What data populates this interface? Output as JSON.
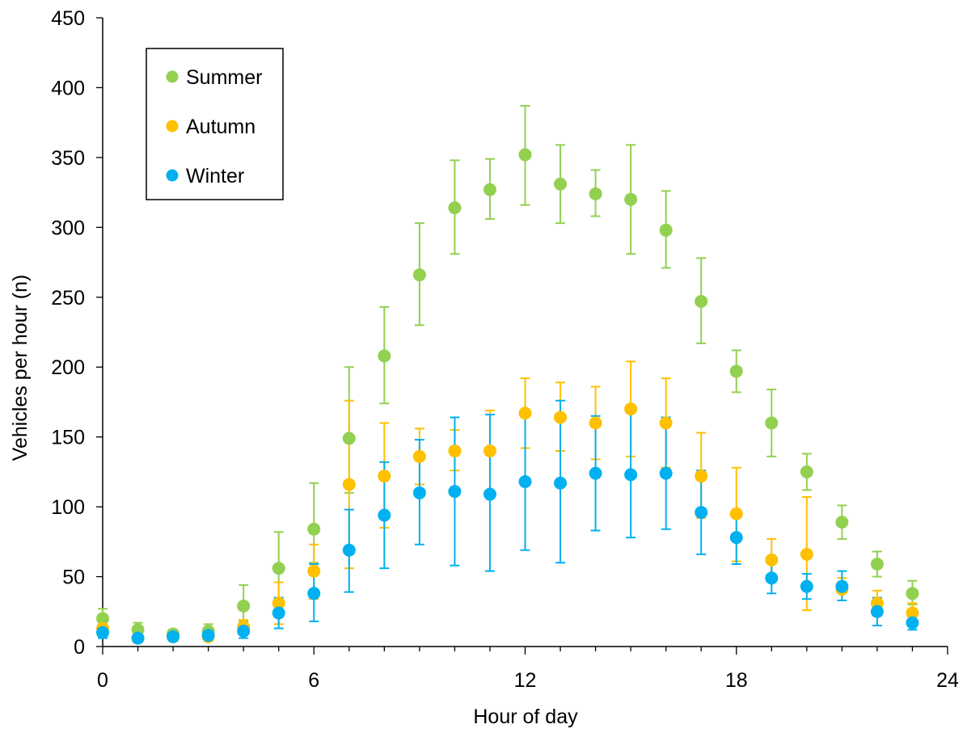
{
  "chart_data": {
    "type": "scatter",
    "title": "",
    "xlabel": "Hour of day",
    "ylabel": "Vehicles per hour (n)",
    "xlim": [
      0,
      24
    ],
    "ylim": [
      0,
      450
    ],
    "xticks": [
      0,
      6,
      12,
      18,
      24
    ],
    "xtick_labels": [
      "0",
      "6",
      "12",
      "18",
      "24"
    ],
    "yticks": [
      0,
      50,
      100,
      150,
      200,
      250,
      300,
      350,
      400,
      450
    ],
    "ytick_labels": [
      "0",
      "50",
      "100",
      "150",
      "200",
      "250",
      "300",
      "350",
      "400",
      "450"
    ],
    "grid": false,
    "legend_position": "top-left",
    "x": [
      0,
      1,
      2,
      3,
      4,
      5,
      6,
      7,
      8,
      9,
      10,
      11,
      12,
      13,
      14,
      15,
      16,
      17,
      18,
      19,
      20,
      21,
      22,
      23
    ],
    "series": [
      {
        "name": "Summer",
        "color": "#92D050",
        "values": [
          20,
          12,
          9,
          11,
          29,
          56,
          84,
          149,
          208,
          266,
          314,
          327,
          352,
          331,
          324,
          320,
          298,
          247,
          197,
          160,
          125,
          89,
          59,
          38
        ],
        "err_low": [
          14,
          8,
          6,
          7,
          18,
          34,
          60,
          110,
          174,
          230,
          281,
          306,
          316,
          303,
          308,
          281,
          271,
          217,
          182,
          136,
          112,
          77,
          50,
          30
        ],
        "err_high": [
          27,
          17,
          12,
          16,
          44,
          82,
          117,
          200,
          243,
          303,
          348,
          349,
          387,
          359,
          341,
          359,
          326,
          278,
          212,
          184,
          138,
          101,
          68,
          47
        ]
      },
      {
        "name": "Autumn",
        "color": "#FFC000",
        "values": [
          13,
          6,
          7,
          7,
          14,
          31,
          54,
          116,
          122,
          136,
          140,
          140,
          167,
          164,
          160,
          170,
          160,
          122,
          95,
          62,
          66,
          41,
          31,
          24
        ],
        "err_low": [
          8,
          3,
          4,
          4,
          9,
          16,
          34,
          56,
          85,
          116,
          126,
          110,
          142,
          140,
          134,
          136,
          128,
          92,
          61,
          47,
          26,
          33,
          22,
          17
        ],
        "err_high": [
          18,
          10,
          10,
          10,
          19,
          46,
          73,
          176,
          160,
          156,
          155,
          169,
          192,
          189,
          186,
          204,
          192,
          153,
          128,
          77,
          107,
          49,
          40,
          31
        ]
      },
      {
        "name": "Winter",
        "color": "#00B0F0",
        "values": [
          10,
          6,
          7,
          8,
          11,
          24,
          38,
          69,
          94,
          110,
          111,
          109,
          118,
          117,
          124,
          123,
          124,
          96,
          78,
          49,
          43,
          43,
          25,
          17
        ],
        "err_low": [
          6,
          3,
          4,
          5,
          6,
          13,
          18,
          39,
          56,
          73,
          58,
          54,
          69,
          60,
          83,
          78,
          84,
          66,
          59,
          38,
          34,
          33,
          15,
          12
        ],
        "err_high": [
          14,
          9,
          10,
          11,
          16,
          35,
          59,
          98,
          132,
          148,
          164,
          166,
          167,
          176,
          165,
          168,
          164,
          126,
          97,
          61,
          52,
          54,
          35,
          22
        ]
      }
    ]
  }
}
